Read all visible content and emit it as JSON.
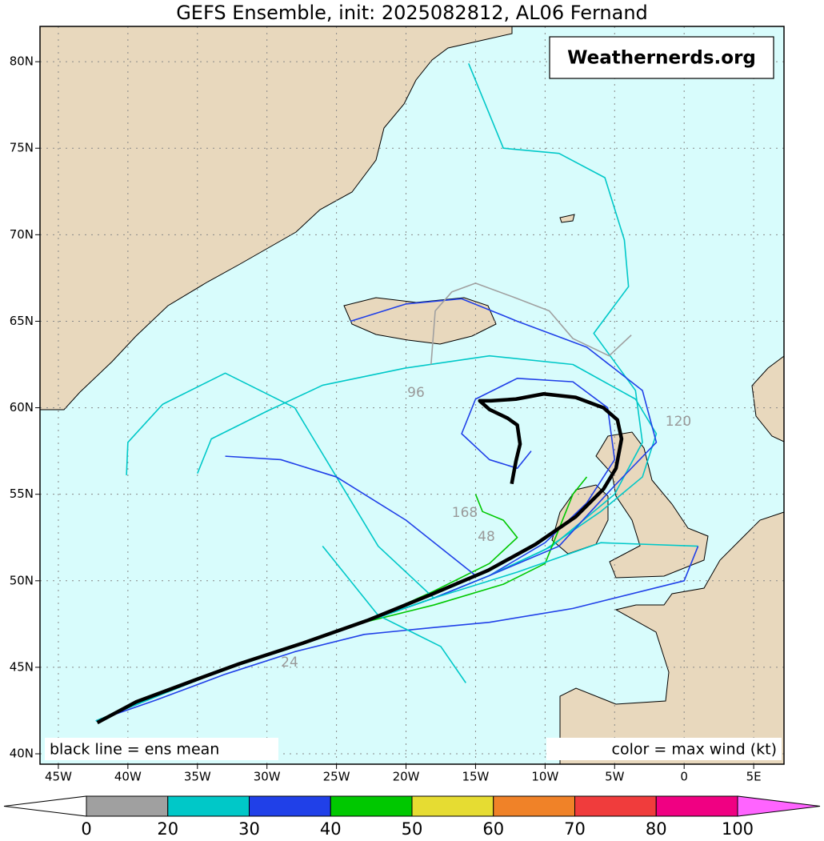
{
  "chart_data": {
    "type": "map",
    "title": "GEFS Ensemble, init: 2025082812, AL06 Fernand",
    "watermark": "Weathernerds.org",
    "note_left": "black line = ens mean",
    "note_right": "color = max wind (kt)",
    "xlim": [
      -46.32,
      7.18
    ],
    "ylim": [
      39.4,
      82.04
    ],
    "xticks": [
      {
        "value": -45,
        "label": "45W"
      },
      {
        "value": -40,
        "label": "40W"
      },
      {
        "value": -35,
        "label": "35W"
      },
      {
        "value": -30,
        "label": "30W"
      },
      {
        "value": -25,
        "label": "25W"
      },
      {
        "value": -20,
        "label": "20W"
      },
      {
        "value": -15,
        "label": "15W"
      },
      {
        "value": -10,
        "label": "10W"
      },
      {
        "value": -5,
        "label": "5W"
      },
      {
        "value": 0,
        "label": "0"
      },
      {
        "value": 5,
        "label": "5E"
      }
    ],
    "yticks": [
      {
        "value": 40,
        "label": "40N"
      },
      {
        "value": 45,
        "label": "45N"
      },
      {
        "value": 50,
        "label": "50N"
      },
      {
        "value": 55,
        "label": "55N"
      },
      {
        "value": 60,
        "label": "60N"
      },
      {
        "value": 65,
        "label": "65N"
      },
      {
        "value": 70,
        "label": "70N"
      },
      {
        "value": 75,
        "label": "75N"
      },
      {
        "value": 80,
        "label": "80N"
      }
    ],
    "grid": true,
    "ocean_color": "#d8fcfc",
    "annotations": [
      "96",
      "120",
      "168",
      "48",
      "24"
    ],
    "tracks": [
      {
        "color": "#2040e8",
        "lon": [
          -42.3,
          -38,
          -33,
          -28,
          -23,
          -18,
          -14,
          -10,
          -7,
          -5,
          -5.5,
          -8,
          -12,
          -15,
          -16,
          -14,
          -12,
          -11
        ],
        "lat": [
          41.9,
          43.3,
          44.9,
          46.2,
          47.6,
          49.0,
          50.3,
          52.2,
          54.5,
          57,
          60,
          61.5,
          61.7,
          60.5,
          58.5,
          57,
          56.5,
          57.5
        ]
      },
      {
        "color": "#00c8c8",
        "lon": [
          -42.3,
          -38,
          -33,
          -28,
          -23,
          -18,
          -14,
          -10,
          -6,
          -3,
          -2,
          -3.5,
          -8,
          -14,
          -20,
          -26,
          -30,
          -34,
          -35
        ],
        "lat": [
          41.9,
          43.3,
          44.9,
          46.2,
          47.6,
          49.0,
          50.3,
          51.8,
          54,
          56,
          58.5,
          60.5,
          62.5,
          63,
          62.3,
          61.3,
          59.8,
          58.2,
          56.2
        ]
      },
      {
        "color": "#00c8c8",
        "lon": [
          -42.3,
          -38,
          -33,
          -28,
          -23,
          -18,
          -14,
          -9.5,
          -5,
          -3,
          -3.5,
          -6.5,
          -4,
          -4.3,
          -5.7,
          -9,
          -13,
          -15.5
        ],
        "lat": [
          41.9,
          43.3,
          44.9,
          46.2,
          47.6,
          49.0,
          50.3,
          52,
          55,
          58,
          61,
          64.3,
          67,
          69.7,
          73.3,
          74.7,
          75,
          79.9
        ]
      },
      {
        "color": "#00c800",
        "lon": [
          -42.3,
          -38,
          -33,
          -28,
          -23,
          -18,
          -14,
          -12,
          -13,
          -14.5,
          -15
        ],
        "lat": [
          41.9,
          43.3,
          44.9,
          46.2,
          47.6,
          49.4,
          51,
          52.5,
          53.5,
          54,
          55
        ]
      },
      {
        "color": "#00c800",
        "lon": [
          -42.3,
          -38,
          -33,
          -28,
          -23,
          -18,
          -13,
          -10,
          -9,
          -8,
          -7
        ],
        "lat": [
          41.9,
          43.3,
          44.9,
          46.2,
          47.6,
          48.6,
          49.8,
          51,
          53,
          55,
          56
        ]
      },
      {
        "color": "#2040e8",
        "lon": [
          -42.3,
          -38,
          -33,
          -28,
          -23,
          -18,
          -14,
          -9,
          -5,
          -2,
          -3,
          -7,
          -12,
          -16,
          -20,
          -24
        ],
        "lat": [
          41.9,
          43.3,
          44.9,
          46.2,
          47.6,
          49.0,
          50.3,
          52,
          55.5,
          58,
          61,
          63.5,
          65,
          66.3,
          66,
          65
        ]
      },
      {
        "color": "#00c8c8",
        "lon": [
          -42.3,
          -38,
          -33,
          -28,
          -23,
          -18,
          -12,
          -6,
          1
        ],
        "lat": [
          41.9,
          43.3,
          44.9,
          46.2,
          47.6,
          49.0,
          50.5,
          52.2,
          52
        ]
      },
      {
        "color": "#2040e8",
        "lon": [
          -42.3,
          -38,
          -33,
          -28,
          -23,
          -18,
          -14,
          -8,
          0,
          1
        ],
        "lat": [
          41.9,
          43.1,
          44.6,
          45.9,
          46.9,
          47.3,
          47.6,
          48.4,
          50,
          52
        ]
      },
      {
        "color": "#00c8c8",
        "lon": [
          -26,
          -22,
          -17.5,
          -15.7
        ],
        "lat": [
          52,
          48,
          46.2,
          44.1
        ]
      },
      {
        "color": "#00c8c8",
        "lon": [
          -42.3,
          -38,
          -33,
          -28,
          -23,
          -18,
          -22,
          -25,
          -28,
          -33,
          -37.5,
          -40,
          -40.1
        ],
        "lat": [
          41.9,
          43.3,
          44.9,
          46.2,
          47.6,
          49,
          52,
          56,
          60,
          62,
          60.2,
          58,
          56.1
        ]
      },
      {
        "color": "#2040e8",
        "lon": [
          -15,
          -20,
          -25,
          -29,
          -33
        ],
        "lat": [
          50.3,
          53.5,
          56,
          57,
          57.2
        ]
      },
      {
        "color": "#a0a0a0",
        "lon": [
          -18.2,
          -17.9,
          -16.7,
          -15,
          -12.3,
          -9.7,
          -8,
          -5.4,
          -3.8
        ],
        "lat": [
          62.5,
          65.6,
          66.7,
          67.2,
          66.4,
          65.6,
          64,
          63,
          64.2
        ]
      }
    ],
    "mean_track": {
      "color": "#000000",
      "lon": [
        -42.2,
        -39.4,
        -35.4,
        -32.0,
        -27.4,
        -22.8,
        -18.2,
        -14.1,
        -10.7,
        -7.8,
        -5.8,
        -4.9,
        -4.5,
        -4.8,
        -5.8,
        -7.8,
        -10.1,
        -12.1,
        -13.9,
        -14.7,
        -14.0,
        -12.7,
        -12.0,
        -11.8,
        -12.1,
        -12.4
      ],
      "lat": [
        41.8,
        43.0,
        44.2,
        45.2,
        46.4,
        47.7,
        49.2,
        50.6,
        52.1,
        53.7,
        55.3,
        56.5,
        58.2,
        59.3,
        60.0,
        60.6,
        60.8,
        60.5,
        60.4,
        60.4,
        59.9,
        59.4,
        59.0,
        57.9,
        56.9,
        55.6
      ]
    },
    "colorbar": {
      "levels": [
        0,
        20,
        30,
        40,
        50,
        60,
        70,
        80,
        100
      ],
      "colors": [
        "#ffffff",
        "#a0a0a0",
        "#00c8c8",
        "#2040e8",
        "#00c800",
        "#e6dc32",
        "#f08228",
        "#f03c3c",
        "#f00082",
        "#ff64ff"
      ]
    }
  }
}
